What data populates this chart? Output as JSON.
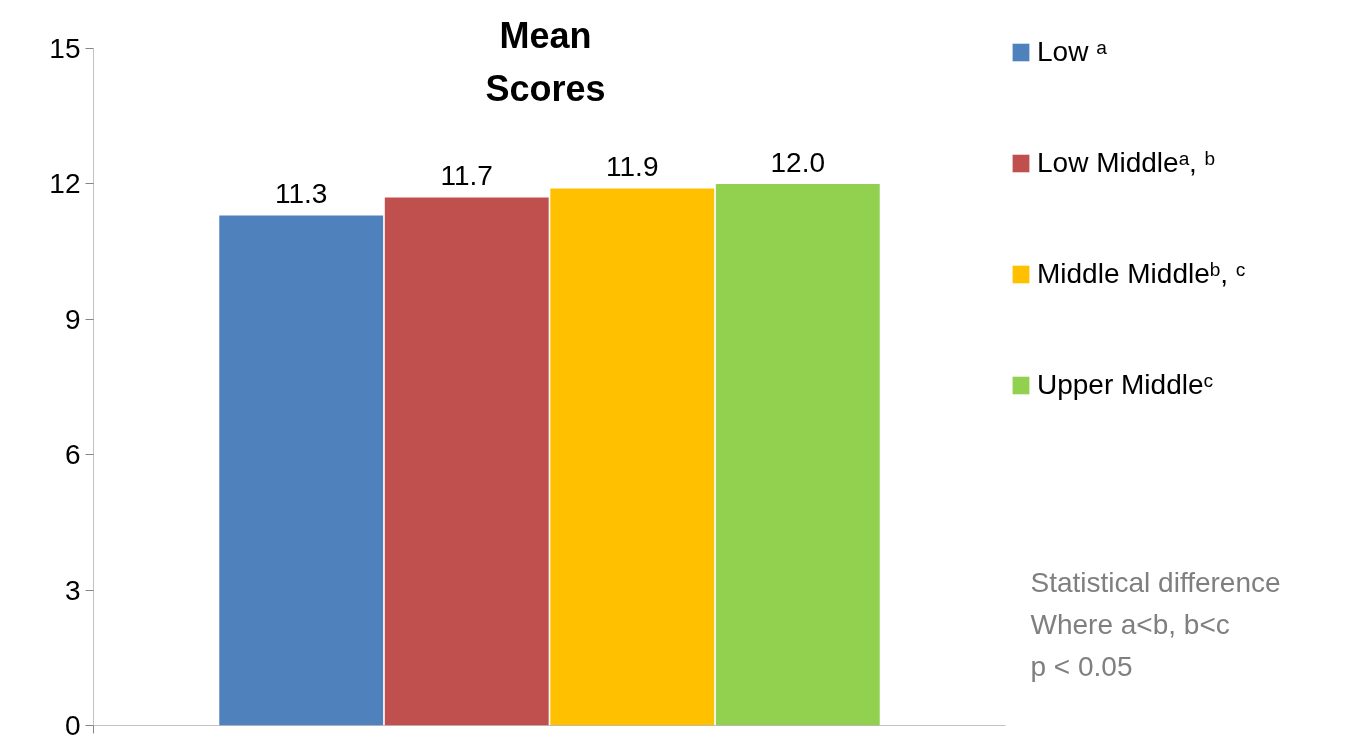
{
  "chart_data": {
    "type": "bar",
    "title": "Mean\nScores",
    "categories": [
      null
    ],
    "series": [
      {
        "name": "Low ᵃ",
        "color": "#4f81bd",
        "values": [
          11.3
        ],
        "value_labels": [
          "11.3"
        ]
      },
      {
        "name": "Low Middleᵃ, ᵇ",
        "color": "#c0504d",
        "values": [
          11.7
        ],
        "value_labels": [
          "11.7"
        ]
      },
      {
        "name": "Middle Middleᵇ, ᶜ",
        "color": "#ffc000",
        "values": [
          11.9
        ],
        "value_labels": [
          "11.9"
        ]
      },
      {
        "name": "Upper Middleᶜ",
        "color": "#92d050",
        "values": [
          12.0
        ],
        "value_labels": [
          "12.0"
        ]
      }
    ],
    "ylim": [
      0,
      15
    ],
    "yticks": [
      0,
      3,
      6,
      9,
      12,
      15
    ],
    "grid": false,
    "legend": "right",
    "tick_labels": "y",
    "data_labels": true,
    "annotations": [
      "Statistical difference\nWhere a<b, b<c\np < 0.05"
    ]
  }
}
